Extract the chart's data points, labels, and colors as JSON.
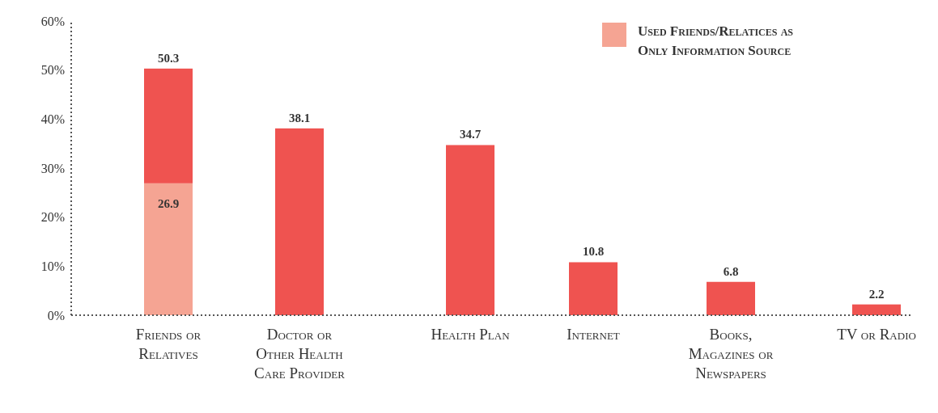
{
  "chart_data": {
    "type": "bar",
    "stacked": true,
    "categories": [
      "Friends or Relatives",
      "Doctor or Other Health Care Provider",
      "Health Plan",
      "Internet",
      "Books, Magazines or Newspapers",
      "TV or Radio"
    ],
    "series": [
      {
        "name": "Used Friends/Relatices as Only Information Source",
        "color": "#f5a493",
        "values": [
          26.9,
          null,
          null,
          null,
          null,
          null
        ],
        "value_labels": [
          "26.9",
          null,
          null,
          null,
          null,
          null
        ]
      },
      {
        "color": "#ef5350",
        "values": [
          23.4,
          38.1,
          34.7,
          10.8,
          6.8,
          2.2
        ]
      }
    ],
    "totals": [
      "50.3",
      "38.1",
      "34.7",
      "10.8",
      "6.8",
      "2.2"
    ],
    "ylim": [
      0,
      60
    ],
    "yticks": [
      {
        "value": 0,
        "label": "0%"
      },
      {
        "value": 10,
        "label": "10%"
      },
      {
        "value": 20,
        "label": "20%"
      },
      {
        "value": 30,
        "label": "30%"
      },
      {
        "value": 40,
        "label": "40%"
      },
      {
        "value": 50,
        "label": "50%"
      },
      {
        "value": 60,
        "label": "60%"
      }
    ],
    "grid": false,
    "legend": "top right"
  }
}
